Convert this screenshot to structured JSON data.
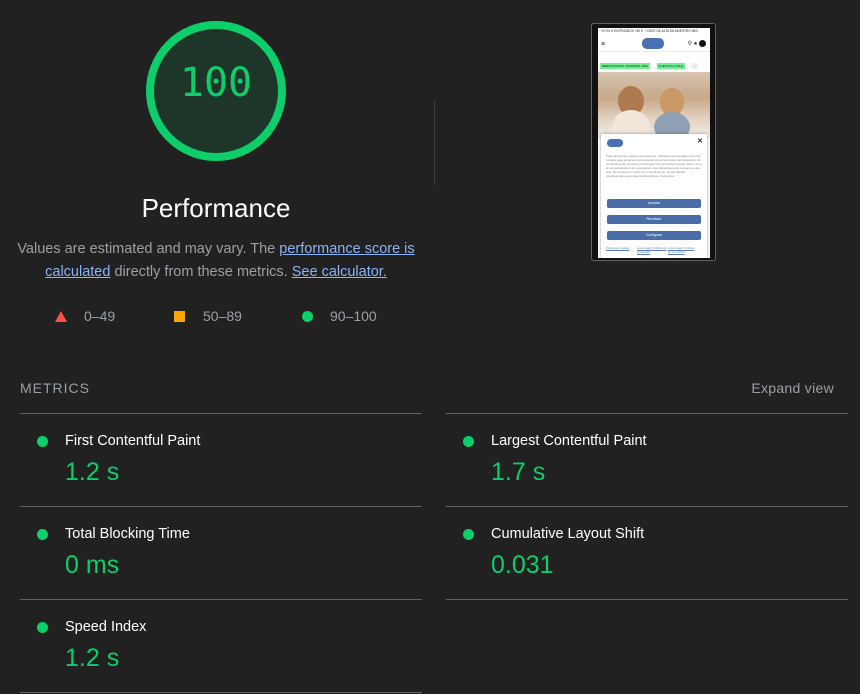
{
  "score": {
    "value": "100",
    "fraction": 1.0,
    "color": "#0cce6b",
    "title": "Performance"
  },
  "description": {
    "text1": "Values are estimated and may vary. The ",
    "link1": "performance score is calculated",
    "text2": " directly from these metrics. ",
    "link2": "See calculator."
  },
  "legend": {
    "fail": {
      "label": "0–49",
      "icon": "triangle-icon",
      "color": "#ff4e42"
    },
    "average": {
      "label": "50–89",
      "icon": "square-icon",
      "color": "#ffa400"
    },
    "pass": {
      "label": "90–100",
      "icon": "circle-icon",
      "color": "#0cce6b"
    }
  },
  "screenshot": {
    "topbar": "YO 24 H EN PEDIDOS +50 € · ! DATE DE ALTA EN NUESTRO NEV",
    "tags": [
      "REBAJAS FINAL INVIERNO -50%",
      "VUELTA AL COLE"
    ],
    "modal_text": "Para ofrecer las mejores experiencias, utilizamos tecnologías como las cookies para almacenar y/o acceder a la información del dispositivo. El consentimiento de estas tecnologías nos permitirá procesar datos como el comportamiento de navegación o las identificaciones únicas en este sitio. No consentir o retirar el consentimiento, puede afectar negativamente a ciertas características y funciones.",
    "buttons": [
      "Aceptar",
      "Rechazar",
      "Configurar"
    ],
    "links": [
      "Política de cookies",
      "Aviso legal y Política de privacidad",
      "Aviso Legal y Política de privacidad"
    ]
  },
  "metrics": {
    "title": "METRICS",
    "expand_label": "Expand view",
    "items": [
      {
        "name": "First Contentful Paint",
        "value": "1.2 s"
      },
      {
        "name": "Largest Contentful Paint",
        "value": "1.7 s"
      },
      {
        "name": "Total Blocking Time",
        "value": "0 ms"
      },
      {
        "name": "Cumulative Layout Shift",
        "value": "0.031"
      },
      {
        "name": "Speed Index",
        "value": "1.2 s"
      }
    ]
  }
}
